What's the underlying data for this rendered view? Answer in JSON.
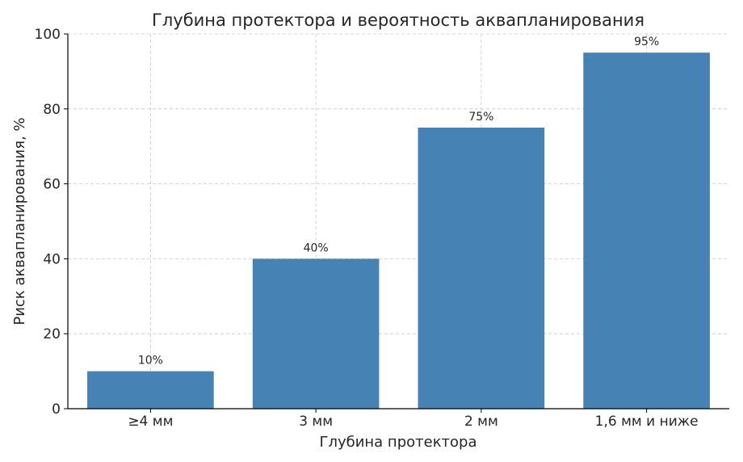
{
  "chart_data": {
    "type": "bar",
    "title": "Глубина протектора и вероятность аквапланирования",
    "xlabel": "Глубина протектора",
    "ylabel": "Риск аквапланирования, %",
    "categories": [
      "≥4 мм",
      "3 мм",
      "2 мм",
      "1,6 мм и ниже"
    ],
    "values": [
      10,
      40,
      75,
      95
    ],
    "value_labels": [
      "10%",
      "40%",
      "75%",
      "95%"
    ],
    "ylim": [
      0,
      100
    ],
    "yticks": [
      0,
      20,
      40,
      60,
      80,
      100
    ],
    "grid": true,
    "bar_color": "#4682b4",
    "legend": null
  }
}
